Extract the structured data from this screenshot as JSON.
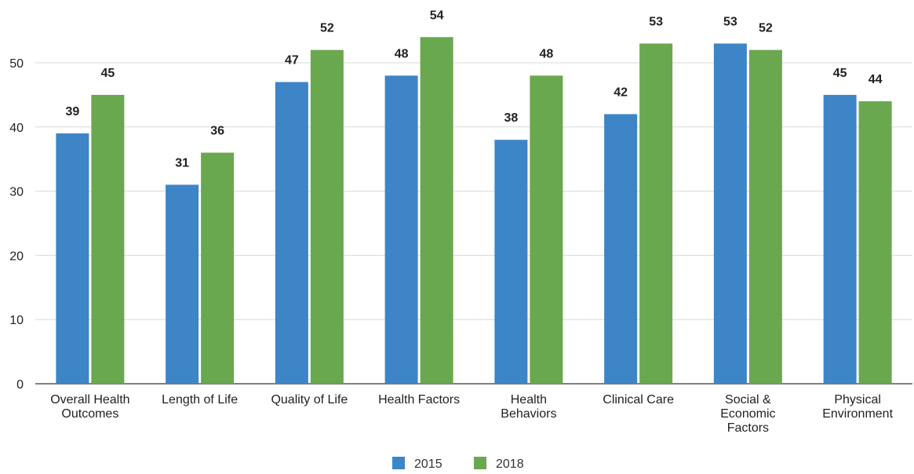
{
  "chart_data": {
    "type": "bar",
    "categories": [
      [
        "Overall Health",
        "Outcomes"
      ],
      [
        "Length of Life"
      ],
      [
        "Quality of Life"
      ],
      [
        "Health Factors"
      ],
      [
        "Health",
        "Behaviors"
      ],
      [
        "Clinical Care"
      ],
      [
        "Social &",
        "Economic",
        "Factors"
      ],
      [
        "Physical",
        "Environment"
      ]
    ],
    "series": [
      {
        "name": "2015",
        "color": "#3d85c6",
        "values": [
          39,
          31,
          47,
          48,
          38,
          42,
          53,
          45
        ]
      },
      {
        "name": "2018",
        "color": "#6aa84f",
        "values": [
          45,
          36,
          52,
          54,
          48,
          53,
          52,
          44
        ]
      }
    ],
    "ylim": [
      0,
      50
    ],
    "yticks": [
      "0",
      "10",
      "20",
      "30",
      "40",
      "50"
    ],
    "grid": true,
    "legend_position": "bottom",
    "data_labels": true
  }
}
